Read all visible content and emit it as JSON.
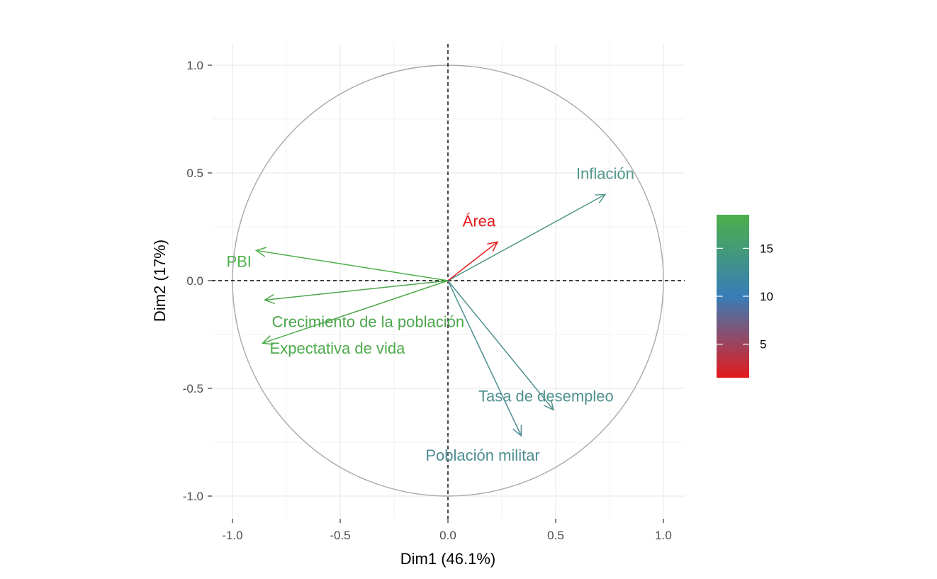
{
  "chart_data": {
    "type": "scatter",
    "subtype": "pca-variable-correlation-circle",
    "xlabel": "Dim1 (46.1%)",
    "ylabel": "Dim2 (17%)",
    "xlim": [
      -1.0,
      1.0
    ],
    "ylim": [
      -1.0,
      1.0
    ],
    "x_ticks": [
      -1.0,
      -0.5,
      0.0,
      0.5,
      1.0
    ],
    "y_ticks": [
      -1.0,
      -0.5,
      0.0,
      0.5,
      1.0
    ],
    "x_tick_labels": [
      "-1.0",
      "-0.5",
      "0.0",
      "0.5",
      "1.0"
    ],
    "y_tick_labels": [
      "-1.0",
      "-0.5",
      "0.0",
      "0.5",
      "1.0"
    ],
    "grid": true,
    "unit_circle": true,
    "variables": [
      {
        "label": "Inflación",
        "x": 0.73,
        "y": 0.4,
        "contrib": 15.5,
        "color": "#52978B"
      },
      {
        "label": "Área",
        "x": 0.23,
        "y": 0.18,
        "contrib": 1.5,
        "color": "#E41A1C"
      },
      {
        "label": "PBI",
        "x": -0.89,
        "y": 0.14,
        "contrib": 18.5,
        "color": "#4DAF4A"
      },
      {
        "label": "Crecimiento de la población",
        "x": -0.85,
        "y": -0.09,
        "contrib": 17.5,
        "color": "#4DA64C"
      },
      {
        "label": "Expectativa de vida",
        "x": -0.86,
        "y": -0.29,
        "contrib": 18.0,
        "color": "#4DAA4B"
      },
      {
        "label": "Tasa de desempleo",
        "x": 0.49,
        "y": -0.6,
        "contrib": 15.0,
        "color": "#4F9090"
      },
      {
        "label": "Población militar",
        "x": 0.34,
        "y": -0.72,
        "contrib": 14.5,
        "color": "#4F8E92"
      }
    ],
    "legend": {
      "position": "right",
      "type": "colorbar",
      "min": 1.5,
      "max": 18.5,
      "ticks": [
        5,
        10,
        15
      ],
      "tick_labels": [
        "5",
        "10",
        "15"
      ],
      "gradient_colors": [
        "#E41A1C",
        "#377EB8",
        "#4DAF4A"
      ]
    }
  }
}
